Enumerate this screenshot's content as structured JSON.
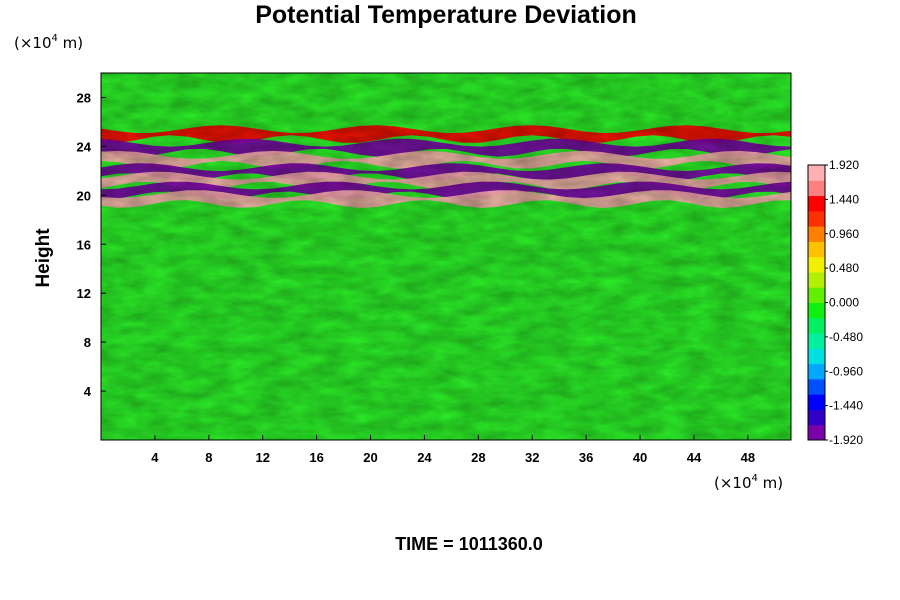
{
  "chart_data": {
    "type": "heatmap",
    "title": "Potential Temperature Deviation",
    "ylabel": "Height",
    "x_unit": {
      "prefix": "(×10",
      "exp": "4",
      "suffix": " m)"
    },
    "y_unit": {
      "prefix": "(×10",
      "exp": "4",
      "suffix": " m)"
    },
    "xlim": [
      0,
      51.2
    ],
    "ylim": [
      0,
      30
    ],
    "x_ticks": [
      4,
      8,
      12,
      16,
      20,
      24,
      28,
      32,
      36,
      40,
      44,
      48
    ],
    "y_ticks": [
      4,
      8,
      12,
      16,
      20,
      24,
      28
    ],
    "colorbar": {
      "min": -1.92,
      "max": 1.92,
      "labels": [
        "1.920",
        "1.440",
        "0.960",
        "0.480",
        "0.000",
        "-0.480",
        "-0.960",
        "-1.440",
        "-1.920"
      ],
      "palette": [
        "#7a00a8",
        "#3000c8",
        "#0000ff",
        "#0050ff",
        "#00a8ff",
        "#00e0e0",
        "#00f0a0",
        "#00f060",
        "#10f010",
        "#60f000",
        "#b0f000",
        "#f0f000",
        "#ffc000",
        "#ff8000",
        "#ff3000",
        "#ff0000",
        "#ff8080",
        "#ffb0b0"
      ]
    },
    "field_description_bands": [
      {
        "y": 25.0,
        "value": 1.3
      },
      {
        "y": 23.9,
        "value": -1.9
      },
      {
        "y": 22.9,
        "value": 1.9
      },
      {
        "y": 21.9,
        "value": -1.9
      },
      {
        "y": 21.2,
        "value": 1.9
      },
      {
        "y": 20.4,
        "value": -1.9
      },
      {
        "y": 19.7,
        "value": 1.9
      }
    ],
    "time_label": "TIME = 1011360.0"
  }
}
